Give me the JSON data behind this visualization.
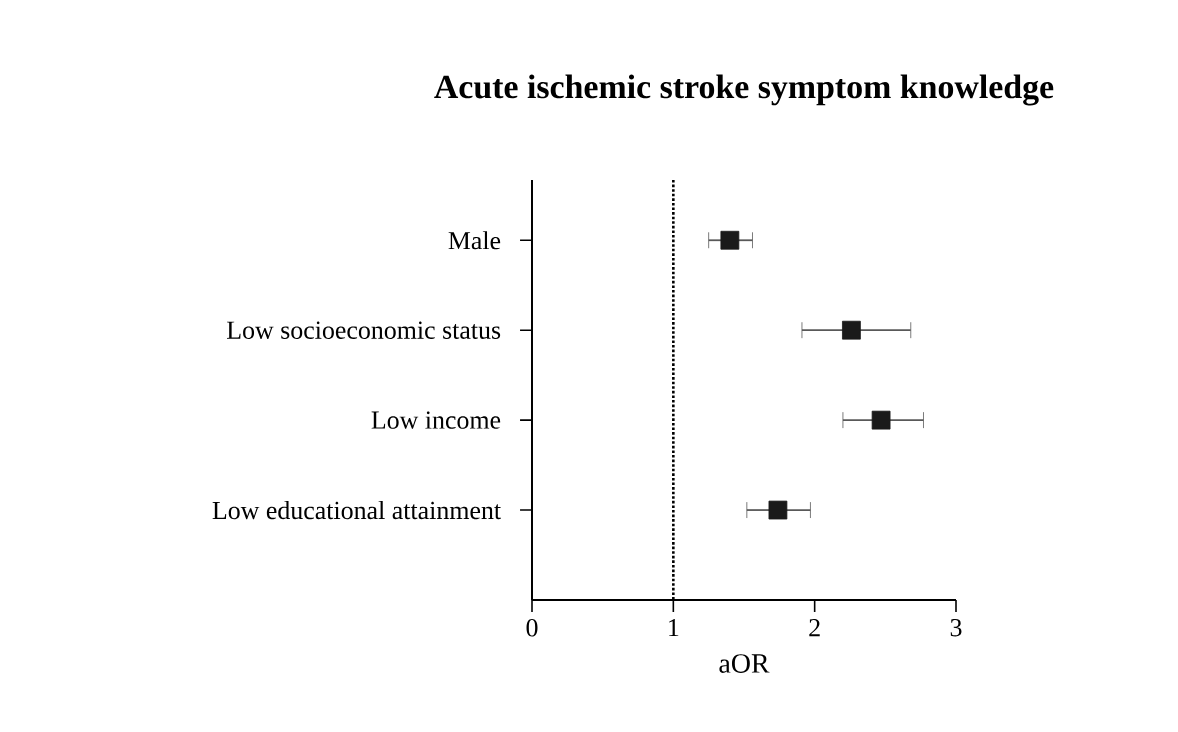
{
  "chart_data": {
    "type": "scatter",
    "orientation": "horizontal",
    "title": "Acute ischemic stroke symptom knowledge",
    "xlabel": "aOR",
    "categories": [
      "Male",
      "Low socioeconomic status",
      "Low income",
      "Low educational attainment"
    ],
    "values": [
      1.4,
      2.26,
      2.47,
      1.74
    ],
    "errors": [
      [
        1.25,
        1.56
      ],
      [
        1.91,
        2.68
      ],
      [
        2.2,
        2.77
      ],
      [
        1.52,
        1.97
      ]
    ],
    "color": "#1a1a1a",
    "marker": "square",
    "xlim": [
      0,
      3
    ],
    "xticks": [
      0,
      1,
      2,
      3
    ],
    "ref_lines": [
      {
        "axis": "x",
        "value": 1,
        "line_style": "dotted",
        "color": "#000000"
      }
    ],
    "grid": false
  }
}
